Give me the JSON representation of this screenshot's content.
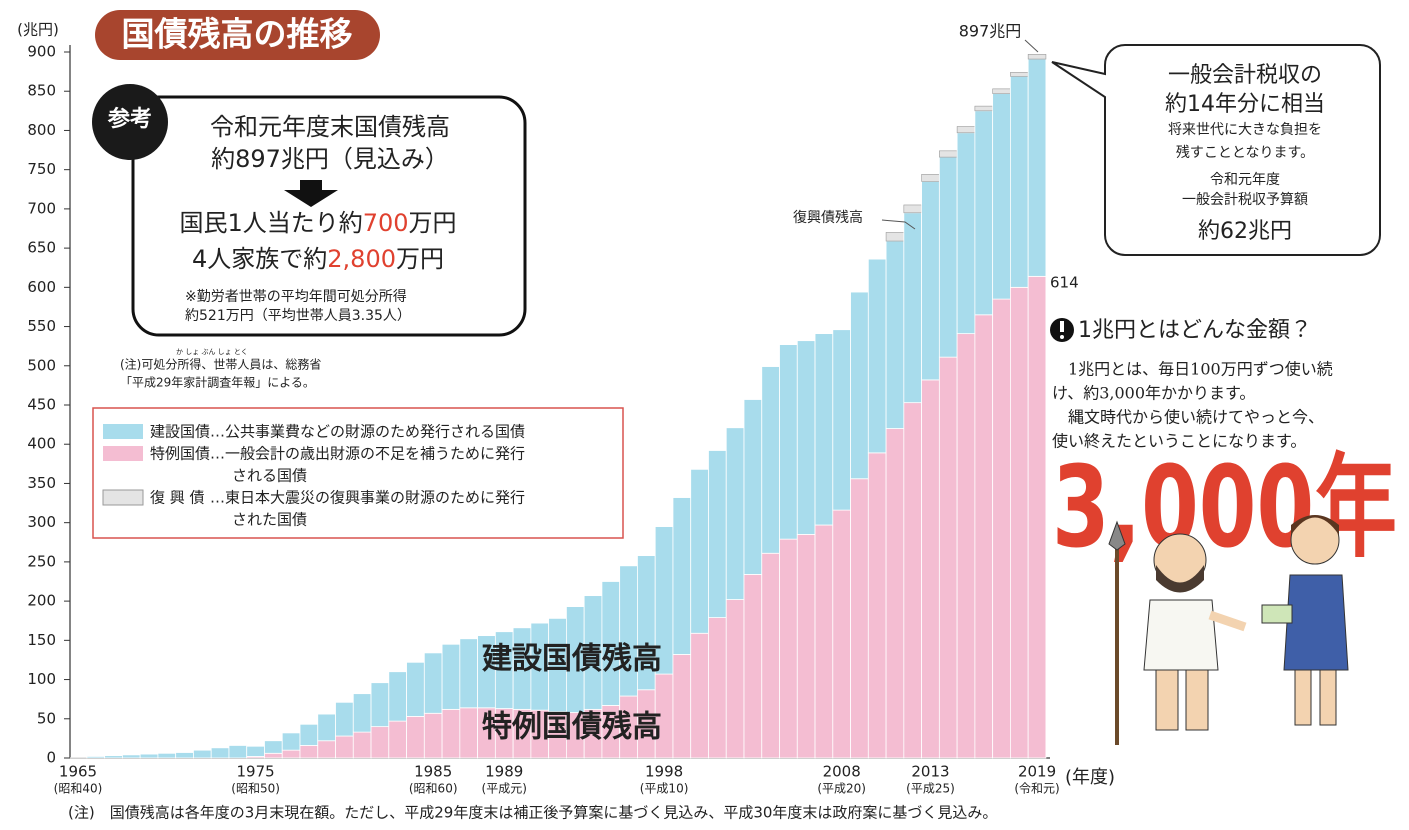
{
  "title": "国債残高の推移",
  "chart_data": {
    "type": "bar",
    "stacked": true,
    "y_label": "(兆円)",
    "x_label": "(年度)",
    "categories": [
      "1965",
      null,
      null,
      null,
      null,
      null,
      null,
      null,
      null,
      null,
      "1975",
      null,
      null,
      null,
      null,
      null,
      null,
      null,
      null,
      null,
      "1985",
      null,
      null,
      null,
      "1989",
      null,
      null,
      null,
      null,
      null,
      null,
      null,
      null,
      "1998",
      null,
      null,
      null,
      null,
      null,
      null,
      null,
      null,
      null,
      "2008",
      null,
      null,
      null,
      null,
      "2013",
      null,
      null,
      null,
      null,
      null,
      "2019"
    ],
    "era_labels": [
      "(昭和40)",
      null,
      null,
      null,
      null,
      null,
      null,
      null,
      null,
      null,
      "(昭和50)",
      null,
      null,
      null,
      null,
      null,
      null,
      null,
      null,
      null,
      "(昭和60)",
      null,
      null,
      null,
      "(平成元)",
      null,
      null,
      null,
      null,
      null,
      null,
      null,
      null,
      "(平成10)",
      null,
      null,
      null,
      null,
      null,
      null,
      null,
      null,
      null,
      "(平成20)",
      null,
      null,
      null,
      null,
      "(平成25)",
      null,
      null,
      null,
      null,
      null,
      "(令和元)"
    ],
    "series": [
      {
        "name": "特例国債",
        "description": [
          "…一般会計の歳出財源の不足を補うために発行",
          "される国債"
        ],
        "color": "#f4bdd2",
        "values": [
          0.2,
          0,
          0,
          0,
          0,
          0,
          0,
          0,
          0,
          0,
          2,
          6,
          10,
          16,
          22,
          28,
          33,
          40,
          47,
          53,
          57,
          62,
          64,
          64,
          63,
          62,
          61,
          59,
          58,
          62,
          67,
          79,
          87,
          107,
          132,
          159,
          179,
          202,
          234,
          261,
          279,
          285,
          297,
          316,
          356,
          389,
          420,
          453,
          482,
          511,
          541,
          565,
          585,
          600,
          614
        ]
      },
      {
        "name": "建設国債",
        "description": [
          "…公共事業費などの財源のため発行される国債"
        ],
        "color": "#a8dcec",
        "values": [
          0,
          2,
          3,
          4,
          5,
          6,
          7,
          10,
          13,
          16,
          13,
          16,
          22,
          27,
          34,
          43,
          49,
          56,
          63,
          69,
          77,
          83,
          88,
          92,
          98,
          104,
          111,
          119,
          135,
          145,
          158,
          166,
          171,
          188,
          200,
          209,
          213,
          219,
          223,
          238,
          248,
          247,
          244,
          230,
          238,
          247,
          239,
          242,
          253,
          255,
          256,
          260,
          262,
          269,
          277
        ]
      },
      {
        "name": "復 興 債",
        "description": [
          "…東日本大震災の復興事業の財源のために発行",
          "された国債"
        ],
        "color": "#e4e4e4",
        "values": [
          null,
          null,
          null,
          null,
          null,
          null,
          null,
          null,
          null,
          null,
          null,
          null,
          null,
          null,
          null,
          null,
          null,
          null,
          null,
          null,
          null,
          null,
          null,
          null,
          null,
          null,
          null,
          null,
          null,
          null,
          null,
          null,
          null,
          null,
          null,
          null,
          null,
          null,
          null,
          null,
          null,
          null,
          null,
          null,
          null,
          null,
          11,
          10,
          9,
          8,
          8,
          6,
          6,
          5,
          6
        ]
      }
    ],
    "ylim": [
      0,
      900
    ],
    "yticks": [
      0,
      50,
      100,
      150,
      200,
      250,
      300,
      350,
      400,
      450,
      500,
      550,
      600,
      650,
      700,
      750,
      800,
      850,
      900
    ],
    "annotations": {
      "total": "897兆円",
      "deficit_end": "614",
      "reconstruction": "復興債残高",
      "construction_area": "建設国債残高",
      "deficit_area": "特例国債残高"
    }
  },
  "reference_box": {
    "badge": "参考",
    "line1": "令和元年度末国債残高",
    "line2": "約897兆円（見込み）",
    "per_person": [
      "国民1人当たり約",
      "700",
      "万円"
    ],
    "per_family": [
      "4人家族で約",
      "2,800",
      "万円"
    ],
    "note": [
      "※勤労者世帯の平均年間可処分所得",
      "約521万円（平均世帯人員3.35人）"
    ]
  },
  "small_note": {
    "furigana": "か しょ ぶん しょ とく",
    "lines": [
      "(注)可処分所得、世帯人員は、総務省",
      "「平成29年家計調査年報」による。"
    ]
  },
  "callout": {
    "line1": "一般会計税収の",
    "line2": "約14年分に相当",
    "line3": "将来世代に大きな負担を",
    "line4": "残すこととなります。",
    "line5": "令和元年度",
    "line6": "一般会計税収予算額",
    "line7": "約62兆円"
  },
  "trillion": {
    "heading": "1兆円とはどんな金額？",
    "body": [
      "　1兆円とは、毎日100万円ずつ使い続",
      "け、約3,000年かかります。",
      "　縄文時代から使い続けてやっと今、",
      "使い終えたということになります。"
    ],
    "big": "3,000年"
  },
  "footnote": "(注)　国債残高は各年度の3月末現在額。ただし、平成29年度末は補正後予算案に基づく見込み、平成30年度末は政府案に基づく見込み。"
}
